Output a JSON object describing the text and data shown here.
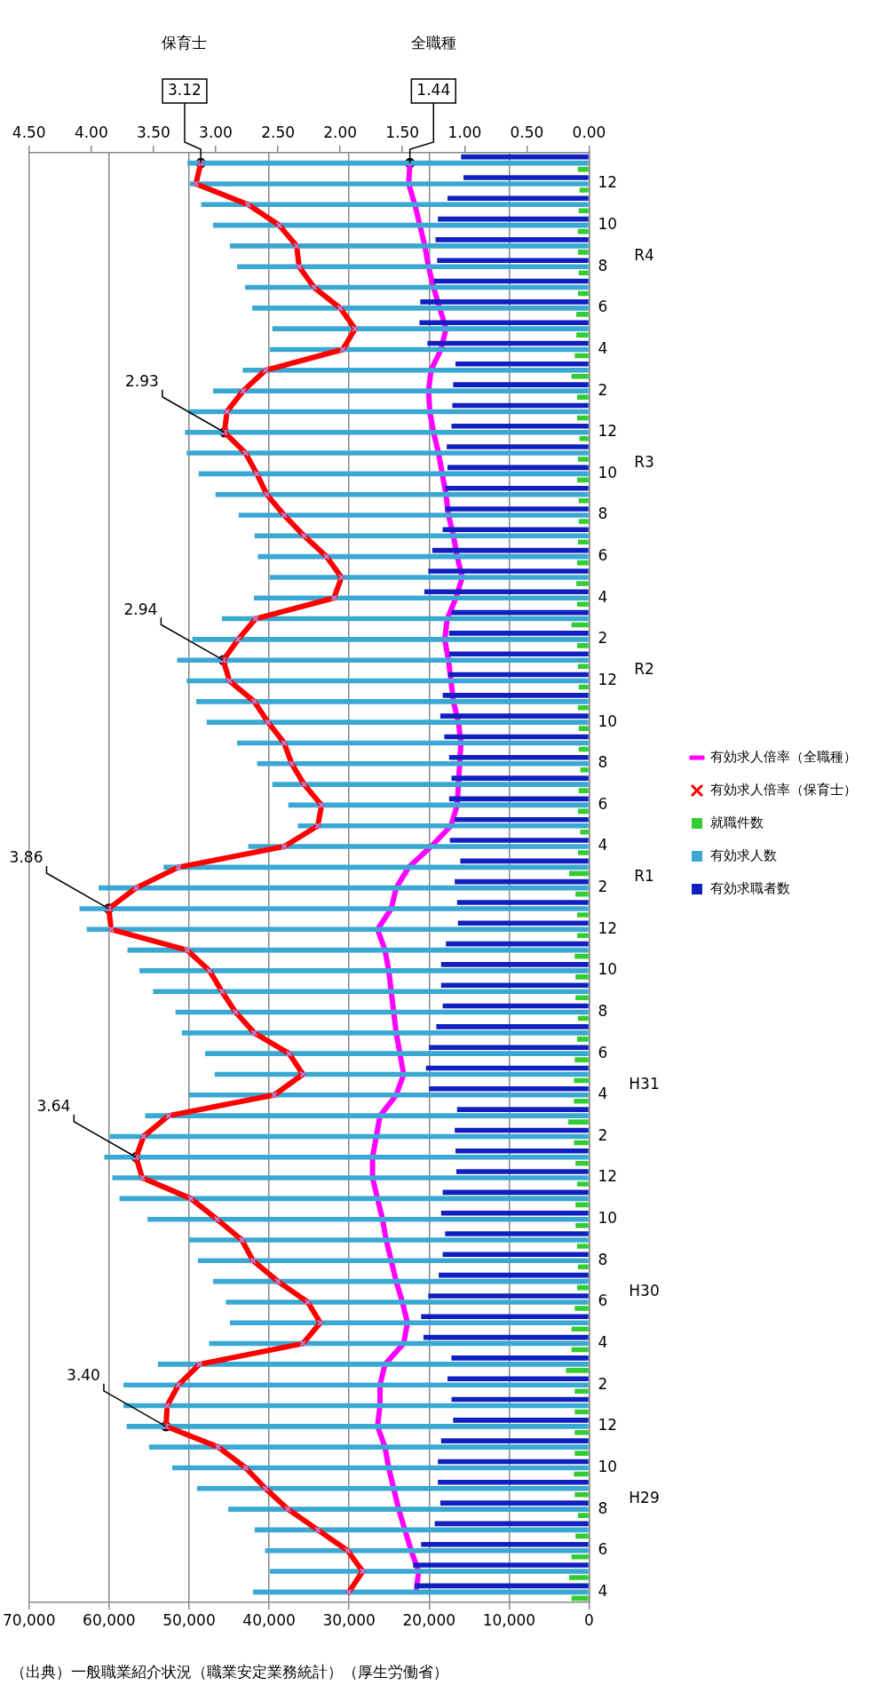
{
  "chart_data": {
    "type": "bar",
    "orientation": "horizontal",
    "categories": [
      null,
      "12",
      null,
      "10",
      null,
      "8",
      null,
      "6",
      null,
      "4",
      null,
      "2",
      null,
      "12",
      null,
      "10",
      null,
      "8",
      null,
      "6",
      null,
      "4",
      null,
      "2",
      null,
      "12",
      null,
      "10",
      null,
      "8",
      null,
      "6",
      null,
      "4",
      null,
      "2",
      null,
      "12",
      null,
      "10",
      null,
      "8",
      null,
      "6",
      null,
      "4",
      null,
      "2",
      null,
      "12",
      null,
      "10",
      null,
      "8",
      null,
      "6",
      null,
      "4",
      null,
      "2",
      null,
      "12",
      null,
      "10",
      null,
      "8",
      null,
      "6",
      null,
      "4"
    ],
    "series": [
      {
        "name": "有効求職者数",
        "color": "#1020c0",
        "values": [
          16000,
          15700,
          17700,
          18900,
          19200,
          19000,
          19400,
          21100,
          21200,
          20200,
          16700,
          17000,
          17100,
          17200,
          17800,
          17700,
          18000,
          18000,
          18300,
          19600,
          20100,
          20600,
          17200,
          17500,
          17500,
          17600,
          18300,
          18600,
          18100,
          17500,
          17200,
          17500,
          16800,
          17400,
          16100,
          16800,
          16500,
          16400,
          17900,
          18500,
          18500,
          18300,
          19100,
          20000,
          20400,
          20000,
          16500,
          16800,
          16700,
          16600,
          18300,
          18500,
          18000,
          18300,
          18800,
          20100,
          21000,
          20700,
          17200,
          17700,
          17200,
          17000,
          18500,
          18900,
          18900,
          18600,
          19300,
          21000,
          22000,
          21800
        ]
      },
      {
        "name": "有効求人数",
        "color": "#3aa8d2",
        "values": [
          50200,
          49900,
          48500,
          47000,
          44900,
          44000,
          43000,
          42100,
          39600,
          39900,
          43300,
          47000,
          50100,
          50500,
          50300,
          48800,
          46700,
          43800,
          41800,
          41400,
          39900,
          41900,
          45900,
          49600,
          51500,
          50300,
          49100,
          47800,
          44000,
          41500,
          39600,
          37600,
          36400,
          42600,
          53200,
          61300,
          63700,
          62800,
          57700,
          56200,
          54500,
          51700,
          50900,
          48000,
          46800,
          50000,
          55500,
          59900,
          60600,
          59600,
          58700,
          55200,
          50000,
          48900,
          47000,
          45400,
          44900,
          47500,
          53900,
          58200,
          58200,
          57800,
          55000,
          52100,
          49000,
          45100,
          41800,
          40500,
          39900,
          42000
        ]
      },
      {
        "name": "就職件数",
        "color": "#33cc33",
        "values": [
          1400,
          1200,
          1300,
          1400,
          1400,
          1300,
          1400,
          1600,
          1600,
          1800,
          2200,
          1500,
          1500,
          1200,
          1400,
          1500,
          1300,
          1300,
          1400,
          1500,
          1600,
          1500,
          2200,
          1500,
          1400,
          1300,
          1400,
          1300,
          1300,
          1100,
          1300,
          1400,
          1100,
          1400,
          2500,
          1700,
          1500,
          1500,
          1800,
          1700,
          1700,
          1400,
          1500,
          1800,
          1900,
          1900,
          2600,
          1900,
          1700,
          1500,
          1700,
          1700,
          1500,
          1400,
          1500,
          1800,
          2200,
          2200,
          2900,
          1800,
          1800,
          1800,
          1800,
          1900,
          1800,
          1400,
          1700,
          2200,
          2500,
          2200
        ]
      },
      {
        "name": "有効求人倍率（保育士）",
        "type": "line",
        "axis": "x2",
        "color": "#ff0000",
        "marker": "cross",
        "values": [
          3.12,
          3.16,
          2.74,
          2.49,
          2.35,
          2.33,
          2.21,
          2.0,
          1.88,
          1.98,
          2.6,
          2.78,
          2.91,
          2.93,
          2.76,
          2.67,
          2.59,
          2.45,
          2.29,
          2.11,
          1.99,
          2.05,
          2.68,
          2.82,
          2.94,
          2.89,
          2.69,
          2.58,
          2.45,
          2.39,
          2.29,
          2.15,
          2.18,
          2.45,
          3.3,
          3.64,
          3.86,
          3.84,
          3.23,
          3.05,
          2.95,
          2.84,
          2.69,
          2.41,
          2.3,
          2.53,
          3.38,
          3.58,
          3.64,
          3.59,
          3.2,
          2.99,
          2.79,
          2.7,
          2.5,
          2.26,
          2.16,
          2.3,
          3.13,
          3.3,
          3.39,
          3.4,
          2.98,
          2.76,
          2.6,
          2.42,
          2.18,
          1.94,
          1.82,
          1.93
        ],
        "value_labels": [
          "3.12",
          null,
          null,
          null,
          null,
          null,
          null,
          null,
          null,
          null,
          null,
          null,
          null,
          "2.93",
          null,
          null,
          null,
          null,
          null,
          null,
          null,
          null,
          null,
          null,
          "2.94",
          null,
          null,
          null,
          null,
          null,
          null,
          null,
          null,
          null,
          null,
          null,
          "3.86",
          null,
          null,
          null,
          null,
          null,
          null,
          null,
          null,
          null,
          null,
          null,
          "3.64",
          null,
          null,
          null,
          null,
          null,
          null,
          null,
          null,
          null,
          null,
          null,
          null,
          "3.40",
          null,
          null,
          null,
          null,
          null,
          null,
          null,
          null
        ]
      },
      {
        "name": "有効求人倍率（全職種）",
        "type": "line",
        "axis": "x2",
        "color": "#ff00ff",
        "values": [
          1.44,
          1.45,
          1.4,
          1.36,
          1.32,
          1.29,
          1.25,
          1.2,
          1.15,
          1.19,
          1.27,
          1.29,
          1.28,
          1.25,
          1.21,
          1.18,
          1.15,
          1.13,
          1.09,
          1.06,
          1.02,
          1.07,
          1.14,
          1.16,
          1.13,
          1.11,
          1.09,
          1.05,
          1.03,
          1.04,
          1.05,
          1.06,
          1.11,
          1.27,
          1.45,
          1.55,
          1.59,
          1.7,
          1.64,
          1.61,
          1.59,
          1.57,
          1.55,
          1.52,
          1.49,
          1.55,
          1.68,
          1.71,
          1.74,
          1.74,
          1.7,
          1.66,
          1.63,
          1.59,
          1.55,
          1.5,
          1.46,
          1.49,
          1.64,
          1.68,
          1.68,
          1.7,
          1.64,
          1.61,
          1.57,
          1.53,
          1.48,
          1.43,
          1.37,
          1.39
        ],
        "value_labels": [
          "1.44",
          null,
          null,
          null,
          null,
          null,
          null,
          null,
          null,
          null,
          null,
          null,
          null,
          null,
          null,
          null,
          null,
          null,
          null,
          null,
          null,
          null,
          null,
          null,
          null,
          null,
          null,
          null,
          null,
          null,
          null,
          null,
          null,
          null,
          null,
          null,
          null,
          null,
          null,
          null,
          null,
          null,
          null,
          null,
          null,
          null,
          null,
          null,
          null,
          null,
          null,
          null,
          null,
          null,
          null,
          null,
          null,
          null,
          null,
          null,
          null,
          null,
          null,
          null,
          null,
          null,
          null,
          null,
          null,
          null
        ]
      }
    ],
    "xlim": [
      70000,
      0
    ],
    "xticks": [
      {
        "value": 70000,
        "label": "70,000"
      },
      {
        "value": 60000,
        "label": "60,000"
      },
      {
        "value": 50000,
        "label": "50,000"
      },
      {
        "value": 40000,
        "label": "40,000"
      },
      {
        "value": 30000,
        "label": "30,000"
      },
      {
        "value": 20000,
        "label": "20,000"
      },
      {
        "value": 10000,
        "label": "10,000"
      },
      {
        "value": 0,
        "label": "0"
      }
    ],
    "x2lim": [
      4.5,
      0
    ],
    "x2ticks": [
      {
        "value": 4.5,
        "label": "4.50"
      },
      {
        "value": 4,
        "label": "4.00"
      },
      {
        "value": 3.5,
        "label": "3.50"
      },
      {
        "value": 3,
        "label": "3.00"
      },
      {
        "value": 2.5,
        "label": "2.50"
      },
      {
        "value": 2,
        "label": "2.00"
      },
      {
        "value": 1.5,
        "label": "1.50"
      },
      {
        "value": 1,
        "label": "1.00"
      },
      {
        "value": 0.5,
        "label": "0.50"
      },
      {
        "value": 0,
        "label": "0.00"
      }
    ],
    "grid": "x",
    "legend": "right",
    "annotations": [
      "保育士",
      "全職種",
      "R4",
      "R3",
      "R2",
      "R1",
      "H31",
      "H30",
      "H29",
      "（出典）一般職業紹介状況（職業安定業務統計）（厚生労働省）"
    ]
  }
}
